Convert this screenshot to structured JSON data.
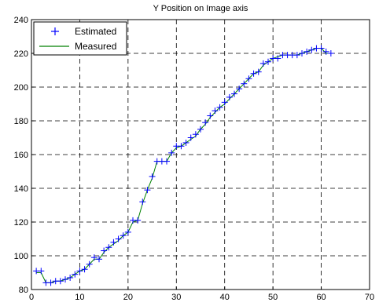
{
  "chart_data": {
    "type": "line",
    "title": "Y Position on Image axis",
    "xlabel": "",
    "ylabel": "",
    "xlim": [
      0,
      70
    ],
    "ylim": [
      80,
      240
    ],
    "xticks": [
      0,
      10,
      20,
      30,
      40,
      50,
      60,
      70
    ],
    "yticks": [
      80,
      100,
      120,
      140,
      160,
      180,
      200,
      220,
      240
    ],
    "grid": true,
    "legend_position": "top-left",
    "series": [
      {
        "name": "Estimated",
        "style": "markers",
        "marker": "plus",
        "color": "#0000ff",
        "x": [
          1,
          2,
          3,
          4,
          5,
          6,
          7,
          8,
          9,
          10,
          11,
          12,
          13,
          14,
          15,
          16,
          17,
          18,
          19,
          20,
          21,
          22,
          23,
          24,
          25,
          26,
          27,
          28,
          29,
          30,
          31,
          32,
          33,
          34,
          35,
          36,
          37,
          38,
          39,
          40,
          41,
          42,
          43,
          44,
          45,
          46,
          47,
          48,
          49,
          50,
          51,
          52,
          53,
          54,
          55,
          56,
          57,
          58,
          59,
          60,
          61,
          62
        ],
        "y": [
          91,
          91,
          84,
          84,
          85,
          85,
          86,
          87,
          89,
          91,
          92,
          95,
          99,
          98,
          103,
          105,
          108,
          110,
          112,
          114,
          121,
          121,
          132,
          139,
          147,
          156,
          156,
          156,
          161,
          165,
          165,
          167,
          170,
          172,
          175,
          179,
          183,
          186,
          188,
          191,
          194,
          196,
          199,
          202,
          205,
          208,
          209,
          214,
          215,
          217,
          217,
          219,
          219,
          219,
          219,
          220,
          221,
          222,
          223,
          223,
          221,
          220
        ]
      },
      {
        "name": "Measured",
        "style": "line",
        "color": "#008000",
        "x": [
          1,
          2,
          3,
          4,
          5,
          6,
          7,
          8,
          9,
          10,
          11,
          12,
          13,
          14,
          15,
          16,
          17,
          18,
          19,
          20,
          21,
          22,
          23,
          24,
          25,
          26,
          27,
          28,
          29,
          30,
          31,
          32,
          33,
          34,
          35,
          36,
          37,
          38,
          39,
          40,
          41,
          42,
          43,
          44,
          45,
          46,
          47,
          48,
          49,
          50,
          51,
          52,
          53,
          54,
          55,
          56,
          57,
          58,
          59,
          60,
          61,
          62
        ],
        "y": [
          90,
          90,
          84,
          84,
          85,
          85,
          86,
          87,
          89,
          91,
          92,
          95,
          98,
          98,
          102,
          105,
          107,
          109,
          112,
          114,
          120,
          121,
          131,
          139,
          146,
          156,
          156,
          156,
          161,
          164,
          165,
          167,
          169,
          171,
          175,
          178,
          182,
          185,
          188,
          190,
          193,
          196,
          199,
          202,
          205,
          208,
          209,
          213,
          215,
          217,
          218,
          219,
          219,
          219,
          219,
          220,
          221,
          222,
          223,
          223,
          220,
          220
        ]
      }
    ]
  }
}
